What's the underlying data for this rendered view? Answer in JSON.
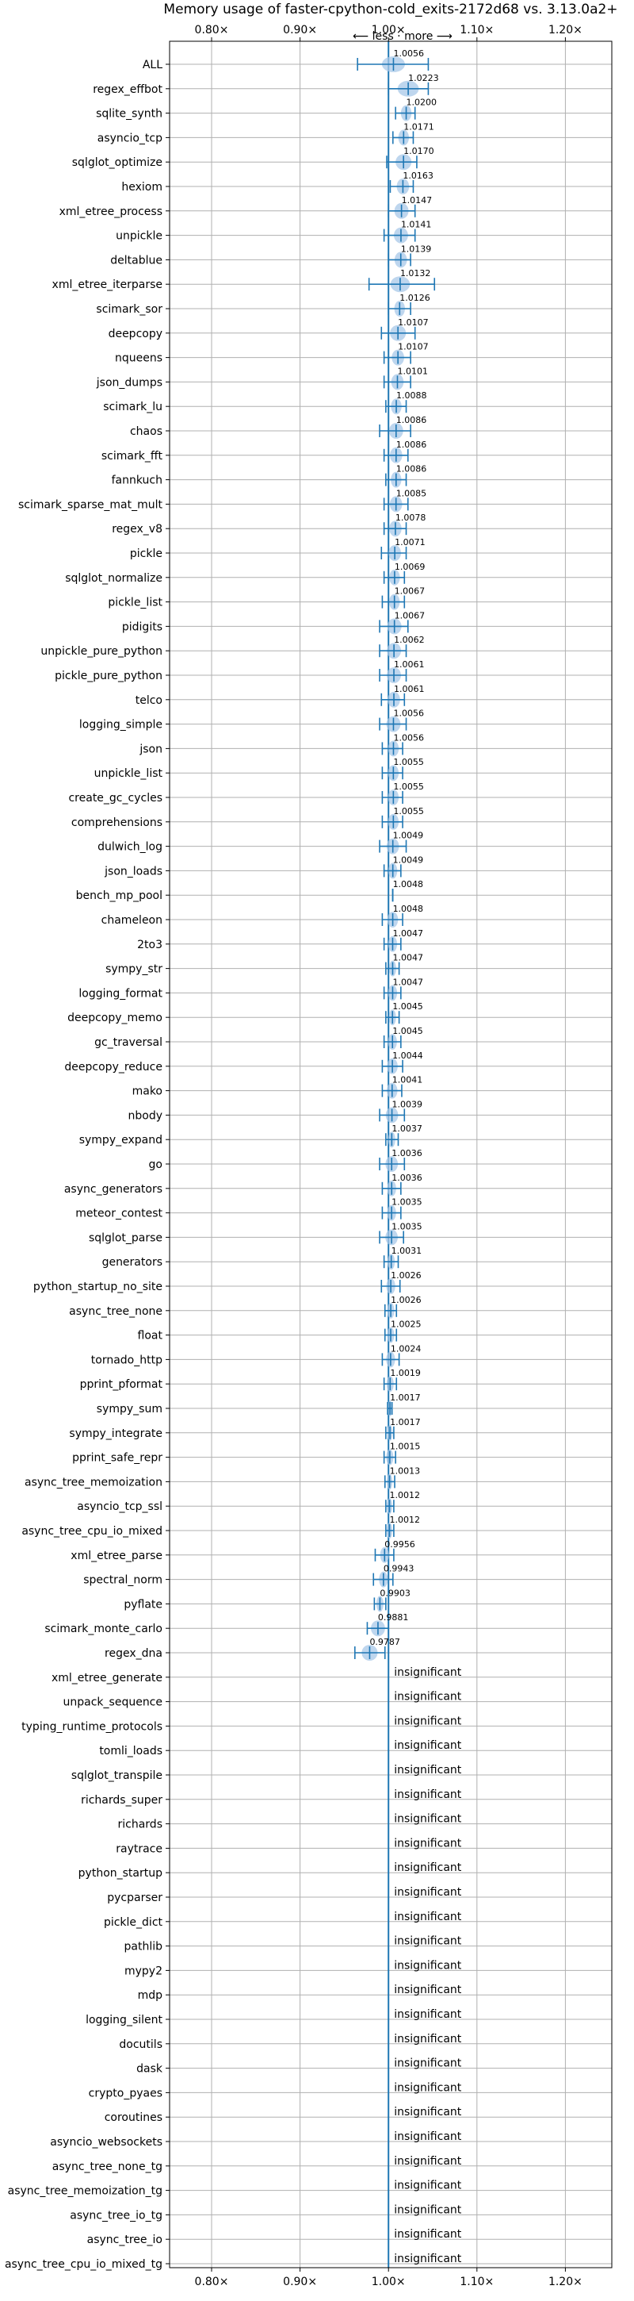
{
  "chart_data": {
    "type": "scatter",
    "title": "Memory usage of faster-cpython-cold_exits-2172d68 vs. 3.13.0a2+",
    "direction_label": "⟵ less · more ⟶",
    "x_ticks": [
      0.8,
      0.9,
      1.0,
      1.1,
      1.2
    ],
    "x_tick_labels": [
      "0.80×",
      "0.90×",
      "1.00×",
      "1.10×",
      "1.20×"
    ],
    "xlim": [
      0.7525,
      1.2525
    ],
    "grid": true,
    "insignificant_label": "insignificant",
    "colors": {
      "marker": "#1f77b4",
      "violin": "#a8c8e8",
      "grid": "#b0b0b0"
    },
    "rows": [
      {
        "name": "ALL",
        "value": 1.0056,
        "lo": 0.965,
        "hi": 1.045,
        "label": "1.0056",
        "spread": 0.013
      },
      {
        "name": "regex_effbot",
        "value": 1.0223,
        "lo": 1.0,
        "hi": 1.045,
        "label": "1.0223",
        "spread": 0.012
      },
      {
        "name": "sqlite_synth",
        "value": 1.02,
        "lo": 1.008,
        "hi": 1.03,
        "label": "1.0200",
        "spread": 0.006
      },
      {
        "name": "asyncio_tcp",
        "value": 1.0171,
        "lo": 1.005,
        "hi": 1.028,
        "label": "1.0171",
        "spread": 0.006
      },
      {
        "name": "sqlglot_optimize",
        "value": 1.017,
        "lo": 0.998,
        "hi": 1.032,
        "label": "1.0170",
        "spread": 0.009
      },
      {
        "name": "hexiom",
        "value": 1.0163,
        "lo": 1.002,
        "hi": 1.028,
        "label": "1.0163",
        "spread": 0.007
      },
      {
        "name": "xml_etree_process",
        "value": 1.0147,
        "lo": 1.0,
        "hi": 1.03,
        "label": "1.0147",
        "spread": 0.008
      },
      {
        "name": "unpickle",
        "value": 1.0141,
        "lo": 0.995,
        "hi": 1.03,
        "label": "1.0141",
        "spread": 0.008
      },
      {
        "name": "deltablue",
        "value": 1.0139,
        "lo": 1.0,
        "hi": 1.025,
        "label": "1.0139",
        "spread": 0.007
      },
      {
        "name": "xml_etree_iterparse",
        "value": 1.0132,
        "lo": 0.978,
        "hi": 1.052,
        "label": "1.0132",
        "spread": 0.011
      },
      {
        "name": "scimark_sor",
        "value": 1.0126,
        "lo": 1.0,
        "hi": 1.025,
        "label": "1.0126",
        "spread": 0.006
      },
      {
        "name": "deepcopy",
        "value": 1.0107,
        "lo": 0.992,
        "hi": 1.03,
        "label": "1.0107",
        "spread": 0.009
      },
      {
        "name": "nqueens",
        "value": 1.0107,
        "lo": 0.995,
        "hi": 1.025,
        "label": "1.0107",
        "spread": 0.007
      },
      {
        "name": "json_dumps",
        "value": 1.0101,
        "lo": 0.995,
        "hi": 1.025,
        "label": "1.0101",
        "spread": 0.007
      },
      {
        "name": "scimark_lu",
        "value": 1.0088,
        "lo": 0.997,
        "hi": 1.02,
        "label": "1.0088",
        "spread": 0.006
      },
      {
        "name": "chaos",
        "value": 1.0086,
        "lo": 0.99,
        "hi": 1.025,
        "label": "1.0086",
        "spread": 0.008
      },
      {
        "name": "scimark_fft",
        "value": 1.0086,
        "lo": 0.995,
        "hi": 1.022,
        "label": "1.0086",
        "spread": 0.007
      },
      {
        "name": "fannkuch",
        "value": 1.0086,
        "lo": 0.997,
        "hi": 1.02,
        "label": "1.0086",
        "spread": 0.006
      },
      {
        "name": "scimark_sparse_mat_mult",
        "value": 1.0085,
        "lo": 0.995,
        "hi": 1.022,
        "label": "1.0085",
        "spread": 0.007
      },
      {
        "name": "regex_v8",
        "value": 1.0078,
        "lo": 0.995,
        "hi": 1.02,
        "label": "1.0078",
        "spread": 0.007
      },
      {
        "name": "pickle",
        "value": 1.0071,
        "lo": 0.992,
        "hi": 1.02,
        "label": "1.0071",
        "spread": 0.007
      },
      {
        "name": "sqlglot_normalize",
        "value": 1.0069,
        "lo": 0.995,
        "hi": 1.018,
        "label": "1.0069",
        "spread": 0.006
      },
      {
        "name": "pickle_list",
        "value": 1.0067,
        "lo": 0.993,
        "hi": 1.018,
        "label": "1.0067",
        "spread": 0.006
      },
      {
        "name": "pidigits",
        "value": 1.0067,
        "lo": 0.99,
        "hi": 1.022,
        "label": "1.0067",
        "spread": 0.008
      },
      {
        "name": "unpickle_pure_python",
        "value": 1.0062,
        "lo": 0.99,
        "hi": 1.02,
        "label": "1.0062",
        "spread": 0.008
      },
      {
        "name": "pickle_pure_python",
        "value": 1.0061,
        "lo": 0.99,
        "hi": 1.02,
        "label": "1.0061",
        "spread": 0.008
      },
      {
        "name": "telco",
        "value": 1.0061,
        "lo": 0.992,
        "hi": 1.018,
        "label": "1.0061",
        "spread": 0.007
      },
      {
        "name": "logging_simple",
        "value": 1.0056,
        "lo": 0.99,
        "hi": 1.02,
        "label": "1.0056",
        "spread": 0.008
      },
      {
        "name": "json",
        "value": 1.0056,
        "lo": 0.993,
        "hi": 1.016,
        "label": "1.0056",
        "spread": 0.006
      },
      {
        "name": "unpickle_list",
        "value": 1.0055,
        "lo": 0.993,
        "hi": 1.016,
        "label": "1.0055",
        "spread": 0.006
      },
      {
        "name": "create_gc_cycles",
        "value": 1.0055,
        "lo": 0.993,
        "hi": 1.016,
        "label": "1.0055",
        "spread": 0.006
      },
      {
        "name": "comprehensions",
        "value": 1.0055,
        "lo": 0.993,
        "hi": 1.016,
        "label": "1.0055",
        "spread": 0.006
      },
      {
        "name": "dulwich_log",
        "value": 1.0049,
        "lo": 0.99,
        "hi": 1.02,
        "label": "1.0049",
        "spread": 0.007
      },
      {
        "name": "json_loads",
        "value": 1.0049,
        "lo": 0.995,
        "hi": 1.014,
        "label": "1.0049",
        "spread": 0.005
      },
      {
        "name": "bench_mp_pool",
        "value": 1.0048,
        "lo": 1.0048,
        "hi": 1.0048,
        "label": "1.0048",
        "spread": 0
      },
      {
        "name": "chameleon",
        "value": 1.0048,
        "lo": 0.993,
        "hi": 1.016,
        "label": "1.0048",
        "spread": 0.006
      },
      {
        "name": "2to3",
        "value": 1.0047,
        "lo": 0.995,
        "hi": 1.014,
        "label": "1.0047",
        "spread": 0.005
      },
      {
        "name": "sympy_str",
        "value": 1.0047,
        "lo": 0.997,
        "hi": 1.012,
        "label": "1.0047",
        "spread": 0.004
      },
      {
        "name": "logging_format",
        "value": 1.0047,
        "lo": 0.995,
        "hi": 1.014,
        "label": "1.0047",
        "spread": 0.005
      },
      {
        "name": "deepcopy_memo",
        "value": 1.0045,
        "lo": 0.997,
        "hi": 1.012,
        "label": "1.0045",
        "spread": 0.004
      },
      {
        "name": "gc_traversal",
        "value": 1.0045,
        "lo": 0.995,
        "hi": 1.014,
        "label": "1.0045",
        "spread": 0.005
      },
      {
        "name": "deepcopy_reduce",
        "value": 1.0044,
        "lo": 0.993,
        "hi": 1.016,
        "label": "1.0044",
        "spread": 0.006
      },
      {
        "name": "mako",
        "value": 1.0041,
        "lo": 0.993,
        "hi": 1.015,
        "label": "1.0041",
        "spread": 0.006
      },
      {
        "name": "nbody",
        "value": 1.0039,
        "lo": 0.99,
        "hi": 1.018,
        "label": "1.0039",
        "spread": 0.007
      },
      {
        "name": "sympy_expand",
        "value": 1.0037,
        "lo": 0.997,
        "hi": 1.011,
        "label": "1.0037",
        "spread": 0.004
      },
      {
        "name": "go",
        "value": 1.0036,
        "lo": 0.99,
        "hi": 1.018,
        "label": "1.0036",
        "spread": 0.007
      },
      {
        "name": "async_generators",
        "value": 1.0036,
        "lo": 0.993,
        "hi": 1.014,
        "label": "1.0036",
        "spread": 0.005
      },
      {
        "name": "meteor_contest",
        "value": 1.0035,
        "lo": 0.993,
        "hi": 1.014,
        "label": "1.0035",
        "spread": 0.005
      },
      {
        "name": "sqlglot_parse",
        "value": 1.0035,
        "lo": 0.99,
        "hi": 1.017,
        "label": "1.0035",
        "spread": 0.007
      },
      {
        "name": "generators",
        "value": 1.0031,
        "lo": 0.995,
        "hi": 1.011,
        "label": "1.0031",
        "spread": 0.004
      },
      {
        "name": "python_startup_no_site",
        "value": 1.0026,
        "lo": 0.992,
        "hi": 1.013,
        "label": "1.0026",
        "spread": 0.005
      },
      {
        "name": "async_tree_none",
        "value": 1.0026,
        "lo": 0.996,
        "hi": 1.009,
        "label": "1.0026",
        "spread": 0.004
      },
      {
        "name": "float",
        "value": 1.0025,
        "lo": 0.996,
        "hi": 1.009,
        "label": "1.0025",
        "spread": 0.004
      },
      {
        "name": "tornado_http",
        "value": 1.0024,
        "lo": 0.993,
        "hi": 1.012,
        "label": "1.0024",
        "spread": 0.005
      },
      {
        "name": "pprint_pformat",
        "value": 1.0019,
        "lo": 0.995,
        "hi": 1.009,
        "label": "1.0019",
        "spread": 0.004
      },
      {
        "name": "sympy_sum",
        "value": 1.0017,
        "lo": 0.999,
        "hi": 1.004,
        "label": "1.0017",
        "spread": 0.002
      },
      {
        "name": "sympy_integrate",
        "value": 1.0017,
        "lo": 0.997,
        "hi": 1.006,
        "label": "1.0017",
        "spread": 0.003
      },
      {
        "name": "pprint_safe_repr",
        "value": 1.0015,
        "lo": 0.995,
        "hi": 1.008,
        "label": "1.0015",
        "spread": 0.004
      },
      {
        "name": "async_tree_memoization",
        "value": 1.0013,
        "lo": 0.996,
        "hi": 1.007,
        "label": "1.0013",
        "spread": 0.003
      },
      {
        "name": "asyncio_tcp_ssl",
        "value": 1.0012,
        "lo": 0.997,
        "hi": 1.006,
        "label": "1.0012",
        "spread": 0.003
      },
      {
        "name": "async_tree_cpu_io_mixed",
        "value": 1.0012,
        "lo": 0.997,
        "hi": 1.006,
        "label": "1.0012",
        "spread": 0.003
      },
      {
        "name": "xml_etree_parse",
        "value": 0.9956,
        "lo": 0.985,
        "hi": 1.006,
        "label": "0.9956",
        "spread": 0.005
      },
      {
        "name": "spectral_norm",
        "value": 0.9943,
        "lo": 0.983,
        "hi": 1.005,
        "label": "0.9943",
        "spread": 0.005
      },
      {
        "name": "pyflate",
        "value": 0.9903,
        "lo": 0.984,
        "hi": 0.997,
        "label": "0.9903",
        "spread": 0.004
      },
      {
        "name": "scimark_monte_carlo",
        "value": 0.9881,
        "lo": 0.976,
        "hi": 1.0,
        "label": "0.9881",
        "spread": 0.008
      },
      {
        "name": "regex_dna",
        "value": 0.9787,
        "lo": 0.962,
        "hi": 0.996,
        "label": "0.9787",
        "spread": 0.009
      },
      {
        "name": "xml_etree_generate",
        "insignificant": true
      },
      {
        "name": "unpack_sequence",
        "insignificant": true
      },
      {
        "name": "typing_runtime_protocols",
        "insignificant": true
      },
      {
        "name": "tomli_loads",
        "insignificant": true
      },
      {
        "name": "sqlglot_transpile",
        "insignificant": true
      },
      {
        "name": "richards_super",
        "insignificant": true
      },
      {
        "name": "richards",
        "insignificant": true
      },
      {
        "name": "raytrace",
        "insignificant": true
      },
      {
        "name": "python_startup",
        "insignificant": true
      },
      {
        "name": "pycparser",
        "insignificant": true
      },
      {
        "name": "pickle_dict",
        "insignificant": true
      },
      {
        "name": "pathlib",
        "insignificant": true
      },
      {
        "name": "mypy2",
        "insignificant": true
      },
      {
        "name": "mdp",
        "insignificant": true
      },
      {
        "name": "logging_silent",
        "insignificant": true
      },
      {
        "name": "docutils",
        "insignificant": true
      },
      {
        "name": "dask",
        "insignificant": true
      },
      {
        "name": "crypto_pyaes",
        "insignificant": true
      },
      {
        "name": "coroutines",
        "insignificant": true
      },
      {
        "name": "asyncio_websockets",
        "insignificant": true
      },
      {
        "name": "async_tree_none_tg",
        "insignificant": true
      },
      {
        "name": "async_tree_memoization_tg",
        "insignificant": true
      },
      {
        "name": "async_tree_io_tg",
        "insignificant": true
      },
      {
        "name": "async_tree_io",
        "insignificant": true
      },
      {
        "name": "async_tree_cpu_io_mixed_tg",
        "insignificant": true
      }
    ]
  }
}
